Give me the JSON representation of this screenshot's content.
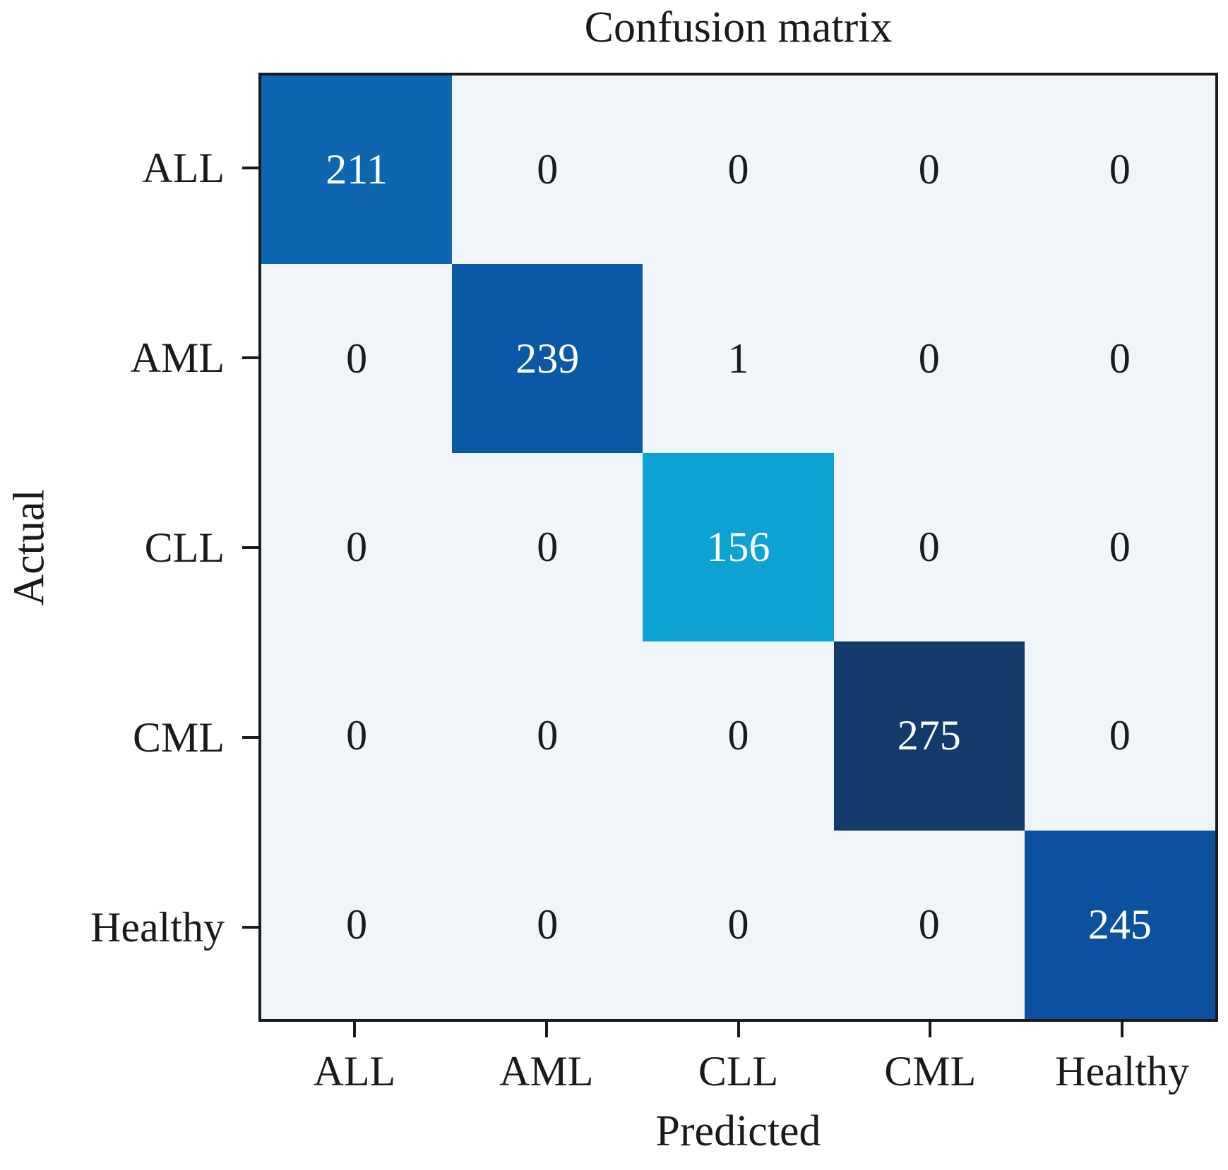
{
  "chart_data": {
    "type": "heatmap",
    "title": "Confusion matrix",
    "xlabel": "Predicted",
    "ylabel": "Actual",
    "x_categories": [
      "ALL",
      "AML",
      "CLL",
      "CML",
      "Healthy"
    ],
    "y_categories": [
      "ALL",
      "AML",
      "CLL",
      "CML",
      "Healthy"
    ],
    "matrix": [
      [
        211,
        0,
        0,
        0,
        0
      ],
      [
        0,
        239,
        1,
        0,
        0
      ],
      [
        0,
        0,
        156,
        0,
        0
      ],
      [
        0,
        0,
        0,
        275,
        0
      ],
      [
        0,
        0,
        0,
        0,
        245
      ]
    ],
    "colors": {
      "diagonal_cells": [
        "#0e66b1",
        "#0a58a6",
        "#0ca3d4",
        "#14396b",
        "#0b519f"
      ],
      "off_diagonal_cell": "#f0f5fa",
      "value_text_on_diagonal": "#ffffff",
      "value_text_off_diagonal": "#1a1a1a",
      "axis": "#1a1a1a"
    },
    "layout_hints": {
      "grid": "off",
      "legend": "none",
      "tick_side_x": "bottom",
      "tick_side_y": "left"
    }
  }
}
